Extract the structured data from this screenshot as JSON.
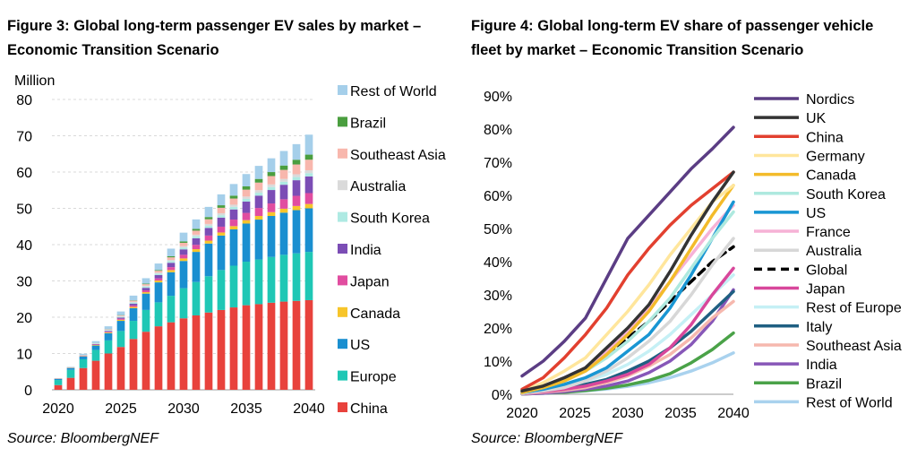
{
  "charts": [
    {
      "figure_title_line1": "Figure 3: Global long-term passenger EV sales by market –",
      "figure_title_line2": "Economic Transition Scenario",
      "source": "Source: BloombergNEF"
    },
    {
      "figure_title_line1": "Figure 4: Global long-term EV share of passenger vehicle",
      "figure_title_line2": "fleet by market – Economic Transition Scenario",
      "source": "Source: BloombergNEF"
    }
  ],
  "chart_data": [
    {
      "type": "bar",
      "stacked": true,
      "title": "Figure 3: Global long-term passenger EV sales by market – Economic Transition Scenario",
      "ylabel": "Million",
      "ylim": [
        0,
        80
      ],
      "yticks": [
        0,
        10,
        20,
        30,
        40,
        50,
        60,
        70,
        80
      ],
      "xtick_labels": [
        "2020",
        "2025",
        "2030",
        "2035",
        "2040"
      ],
      "grid": true,
      "legend_position": "right",
      "categories": [
        2020,
        2021,
        2022,
        2023,
        2024,
        2025,
        2026,
        2027,
        2028,
        2029,
        2030,
        2031,
        2032,
        2033,
        2034,
        2035,
        2036,
        2037,
        2038,
        2039,
        2040
      ],
      "series": [
        {
          "name": "China",
          "color": "#e8423c",
          "values": [
            1.3,
            3.3,
            6.0,
            8.0,
            10.0,
            11.8,
            14.0,
            16.0,
            17.5,
            18.6,
            19.7,
            20.5,
            21.3,
            22.0,
            22.7,
            23.3,
            23.6,
            24.0,
            24.3,
            24.5,
            24.7
          ]
        },
        {
          "name": "Europe",
          "color": "#1fc7b5",
          "values": [
            1.4,
            2.2,
            2.4,
            3.0,
            3.6,
            4.4,
            5.0,
            6.0,
            6.6,
            7.3,
            8.3,
            9.2,
            10.0,
            11.0,
            11.5,
            12.0,
            12.3,
            12.6,
            12.9,
            13.1,
            13.3
          ]
        },
        {
          "name": "US",
          "color": "#1a8fd0",
          "values": [
            0.3,
            0.5,
            0.8,
            1.2,
            2.0,
            2.8,
            3.5,
            4.5,
            5.5,
            6.5,
            7.5,
            8.3,
            9.0,
            9.5,
            10.0,
            10.5,
            11.0,
            11.3,
            11.6,
            11.9,
            12.0
          ]
        },
        {
          "name": "Canada",
          "color": "#f7c52a",
          "values": [
            0.05,
            0.06,
            0.1,
            0.15,
            0.2,
            0.3,
            0.35,
            0.4,
            0.5,
            0.6,
            0.7,
            0.75,
            0.8,
            0.85,
            0.9,
            0.95,
            1.0,
            1.05,
            1.1,
            1.15,
            1.2
          ]
        },
        {
          "name": "Japan",
          "color": "#e14da0",
          "values": [
            0.05,
            0.05,
            0.1,
            0.15,
            0.2,
            0.3,
            0.4,
            0.5,
            0.6,
            0.8,
            1.0,
            1.2,
            1.4,
            1.6,
            1.8,
            2.0,
            2.2,
            2.4,
            2.6,
            2.8,
            3.0
          ]
        },
        {
          "name": "India",
          "color": "#7b4db5",
          "values": [
            0.02,
            0.03,
            0.05,
            0.1,
            0.2,
            0.3,
            0.5,
            0.7,
            0.9,
            1.2,
            1.5,
            1.8,
            2.1,
            2.5,
            2.8,
            3.1,
            3.4,
            3.7,
            4.0,
            4.3,
            4.6
          ]
        },
        {
          "name": "South Korea",
          "color": "#aeeae3",
          "values": [
            0.03,
            0.05,
            0.1,
            0.15,
            0.2,
            0.25,
            0.3,
            0.35,
            0.4,
            0.45,
            0.5,
            0.55,
            0.6,
            0.65,
            0.7,
            0.75,
            0.8,
            0.82,
            0.85,
            0.87,
            0.9
          ]
        },
        {
          "name": "Australia",
          "color": "#dadada",
          "values": [
            0.01,
            0.02,
            0.03,
            0.05,
            0.1,
            0.15,
            0.2,
            0.25,
            0.3,
            0.35,
            0.4,
            0.45,
            0.5,
            0.55,
            0.6,
            0.65,
            0.7,
            0.72,
            0.75,
            0.77,
            0.8
          ]
        },
        {
          "name": "Southeast Asia",
          "color": "#f8b7ad",
          "values": [
            0.01,
            0.02,
            0.04,
            0.08,
            0.15,
            0.2,
            0.3,
            0.4,
            0.5,
            0.7,
            0.9,
            1.1,
            1.3,
            1.5,
            1.7,
            1.9,
            2.1,
            2.3,
            2.5,
            2.7,
            2.9
          ]
        },
        {
          "name": "Brazil",
          "color": "#4a9e3f",
          "values": [
            0.0,
            0.01,
            0.01,
            0.02,
            0.05,
            0.08,
            0.1,
            0.15,
            0.2,
            0.3,
            0.4,
            0.5,
            0.6,
            0.7,
            0.8,
            0.9,
            1.0,
            1.1,
            1.2,
            1.3,
            1.4
          ]
        },
        {
          "name": "Rest of World",
          "color": "#a5cfea",
          "values": [
            0.05,
            0.1,
            0.3,
            0.5,
            0.8,
            1.0,
            1.3,
            1.5,
            1.8,
            2.1,
            2.4,
            2.6,
            2.8,
            3.0,
            3.2,
            3.4,
            3.6,
            3.8,
            4.0,
            4.3,
            5.5
          ]
        }
      ]
    },
    {
      "type": "line",
      "title": "Figure 4: Global long-term EV share of passenger vehicle fleet by market – Economic Transition Scenario",
      "ylim": [
        0,
        90
      ],
      "yticks": [
        "0%",
        "10%",
        "20%",
        "30%",
        "40%",
        "50%",
        "60%",
        "70%",
        "80%",
        "90%"
      ],
      "xtick_labels": [
        "2020",
        "2025",
        "2030",
        "2035",
        "2040"
      ],
      "grid": false,
      "legend_position": "right",
      "x": [
        2020,
        2022,
        2024,
        2026,
        2028,
        2030,
        2032,
        2034,
        2036,
        2038,
        2040
      ],
      "series": [
        {
          "name": "Nordics",
          "color": "#5b3d84",
          "dashed": false,
          "values": [
            5.5,
            10,
            16,
            23,
            35,
            47,
            54,
            61,
            68,
            74,
            80.5
          ]
        },
        {
          "name": "UK",
          "color": "#333333",
          "dashed": false,
          "values": [
            1,
            2.5,
            5,
            8,
            14,
            20,
            27,
            37,
            48,
            58,
            67
          ]
        },
        {
          "name": "China",
          "color": "#e2402f",
          "dashed": false,
          "values": [
            1.5,
            5,
            11,
            18,
            26,
            36,
            44,
            51,
            57,
            62,
            67
          ]
        },
        {
          "name": "Germany",
          "color": "#ffe69c",
          "dashed": false,
          "values": [
            1,
            3.5,
            7,
            11,
            18,
            25,
            33,
            42,
            50,
            58,
            63
          ]
        },
        {
          "name": "Canada",
          "color": "#f3bb2a",
          "dashed": false,
          "values": [
            0.5,
            2,
            4,
            7,
            12,
            18,
            25,
            34,
            44,
            54,
            63
          ]
        },
        {
          "name": "South Korea",
          "color": "#aee9df",
          "dashed": false,
          "values": [
            0.5,
            2,
            4,
            7,
            11,
            16,
            22,
            29,
            38,
            47,
            55
          ]
        },
        {
          "name": "US",
          "color": "#1996d3",
          "dashed": false,
          "values": [
            0.5,
            1.5,
            3,
            5,
            8,
            13,
            18,
            26,
            36,
            47,
            58
          ]
        },
        {
          "name": "France",
          "color": "#f6b2d6",
          "dashed": false,
          "values": [
            1,
            2.5,
            5,
            8,
            13,
            19,
            26,
            34,
            42,
            50,
            57
          ]
        },
        {
          "name": "Australia",
          "color": "#d7d7d7",
          "dashed": false,
          "values": [
            0.3,
            1,
            2,
            4,
            7,
            11,
            16,
            22,
            30,
            39,
            47
          ]
        },
        {
          "name": "Global",
          "color": "#000000",
          "dashed": true,
          "values": [
            1,
            2.5,
            4.5,
            7.5,
            12,
            17,
            22,
            28,
            34,
            40,
            44.5
          ]
        },
        {
          "name": "Japan",
          "color": "#d8479b",
          "dashed": false,
          "values": [
            0.3,
            0.8,
            1.5,
            2.5,
            4,
            6,
            9,
            14,
            21,
            30,
            38
          ]
        },
        {
          "name": "Rest of Europe",
          "color": "#c5f0f5",
          "dashed": false,
          "values": [
            0.5,
            1.5,
            2.5,
            4,
            6,
            9,
            13,
            18,
            24,
            30,
            36
          ]
        },
        {
          "name": "Italy",
          "color": "#1f5f82",
          "dashed": false,
          "values": [
            0.3,
            1,
            2,
            3,
            4.5,
            7,
            10,
            14,
            19,
            25,
            31
          ]
        },
        {
          "name": "Southeast Asia",
          "color": "#f6b8ae",
          "dashed": false,
          "values": [
            0.2,
            0.6,
            1.2,
            2,
            3.5,
            5.5,
            8.5,
            12,
            17,
            23,
            28
          ]
        },
        {
          "name": "India",
          "color": "#8757b8",
          "dashed": false,
          "values": [
            0.1,
            0.3,
            0.8,
            1.5,
            2.5,
            4,
            6.5,
            10,
            15,
            22,
            31.5
          ]
        },
        {
          "name": "Brazil",
          "color": "#4aa248",
          "dashed": false,
          "values": [
            0.1,
            0.3,
            0.6,
            1.1,
            1.8,
            2.8,
            4.2,
            6.2,
            9.5,
            13.5,
            18.5
          ]
        },
        {
          "name": "Rest of World",
          "color": "#a9d2ee",
          "dashed": false,
          "values": [
            0.1,
            0.3,
            0.6,
            1,
            1.6,
            2.4,
            3.5,
            5,
            7,
            9.5,
            12.5
          ]
        }
      ]
    }
  ]
}
